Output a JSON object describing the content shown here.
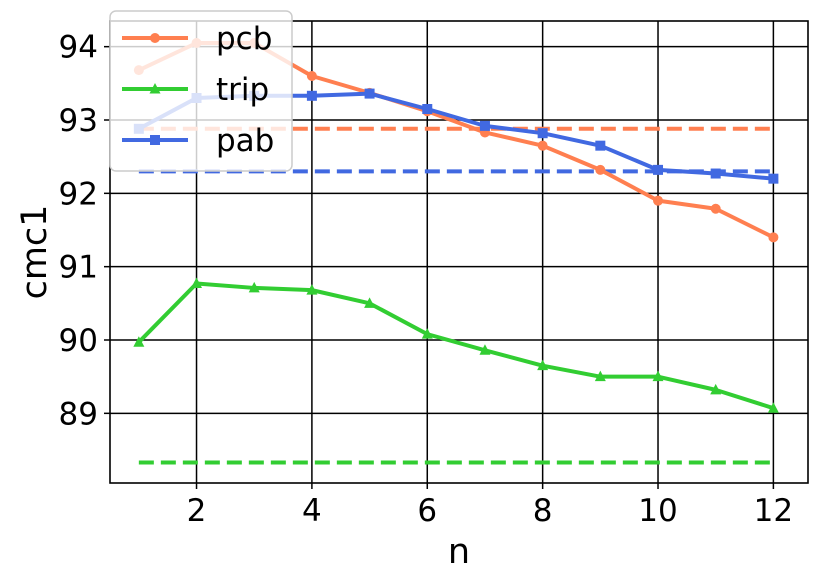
{
  "chart_data": {
    "type": "line",
    "xlabel": "n",
    "ylabel": "cmc1",
    "xlim": [
      0.5,
      12.6
    ],
    "ylim": [
      88.05,
      94.35
    ],
    "xticks": [
      2,
      4,
      6,
      8,
      10,
      12
    ],
    "yticks": [
      89,
      90,
      91,
      92,
      93,
      94
    ],
    "grid": true,
    "legend_position": "top-left",
    "x": [
      1,
      2,
      3,
      4,
      5,
      6,
      7,
      8,
      9,
      10,
      11,
      12
    ],
    "series": [
      {
        "name": "pcb",
        "color": "#ff7f50",
        "marker": "circle",
        "values": [
          93.68,
          94.05,
          94.05,
          93.6,
          93.37,
          93.12,
          92.83,
          92.65,
          92.32,
          91.9,
          91.79,
          91.4
        ],
        "baseline": 92.88
      },
      {
        "name": "trip",
        "color": "#32cd32",
        "marker": "triangle",
        "values": [
          89.97,
          90.77,
          90.71,
          90.68,
          90.5,
          90.08,
          89.86,
          89.65,
          89.5,
          89.5,
          89.32,
          89.07
        ],
        "baseline": 88.33
      },
      {
        "name": "pab",
        "color": "#4169e1",
        "marker": "square",
        "values": [
          92.88,
          93.3,
          93.33,
          93.33,
          93.36,
          93.15,
          92.92,
          92.82,
          92.65,
          92.32,
          92.27,
          92.2
        ],
        "baseline": 92.3
      }
    ]
  }
}
